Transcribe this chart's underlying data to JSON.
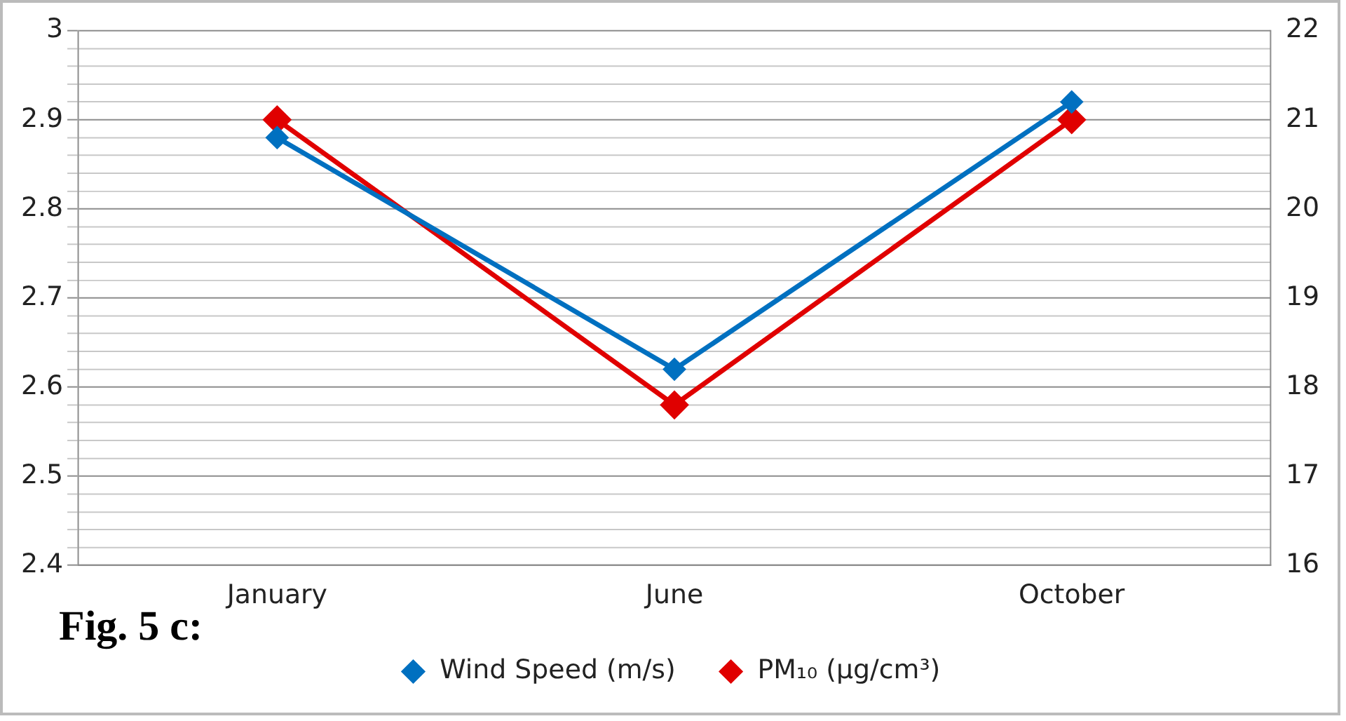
{
  "chart_data": {
    "type": "line",
    "categories": [
      "January",
      "June",
      "October"
    ],
    "series": [
      {
        "name": "Wind Speed (m/s)",
        "color": "#0070c0",
        "values": [
          2.88,
          2.62,
          2.92
        ]
      },
      {
        "name": "PM₁₀ (µg/cm³)",
        "color": "#e00000",
        "values": [
          21,
          17.8,
          21
        ],
        "axis": "y2"
      }
    ],
    "ylim": [
      2.4,
      3
    ],
    "yticks": [
      2.4,
      {
        "value": 2.42,
        "label": null
      },
      {
        "value": 2.44,
        "label": null
      },
      {
        "value": 2.46,
        "label": null
      },
      {
        "value": 2.48,
        "label": null
      },
      2.5,
      {
        "value": 2.52,
        "label": null
      },
      {
        "value": 2.54,
        "label": null
      },
      {
        "value": 2.56,
        "label": null
      },
      {
        "value": 2.58,
        "label": null
      },
      2.6,
      {
        "value": 2.62,
        "label": null
      },
      {
        "value": 2.64,
        "label": null
      },
      {
        "value": 2.66,
        "label": null
      },
      {
        "value": 2.68,
        "label": null
      },
      2.7,
      {
        "value": 2.72,
        "label": null
      },
      {
        "value": 2.74,
        "label": null
      },
      {
        "value": 2.76,
        "label": null
      },
      {
        "value": 2.78,
        "label": null
      },
      2.8,
      {
        "value": 2.82,
        "label": null
      },
      {
        "value": 2.84,
        "label": null
      },
      {
        "value": 2.86,
        "label": null
      },
      {
        "value": 2.88,
        "label": null
      },
      2.9,
      {
        "value": 2.92,
        "label": null
      },
      {
        "value": 2.94,
        "label": null
      },
      {
        "value": 2.96,
        "label": null
      },
      {
        "value": 2.98,
        "label": null
      },
      3
    ],
    "y2lim": [
      16,
      22
    ],
    "y2ticks": [
      16,
      17,
      18,
      19,
      20,
      21,
      22
    ],
    "grid": "y",
    "legend": "bottom",
    "marker": "diamond",
    "line_style": "solid",
    "annotations": [
      "Fig. 5 c:"
    ]
  }
}
